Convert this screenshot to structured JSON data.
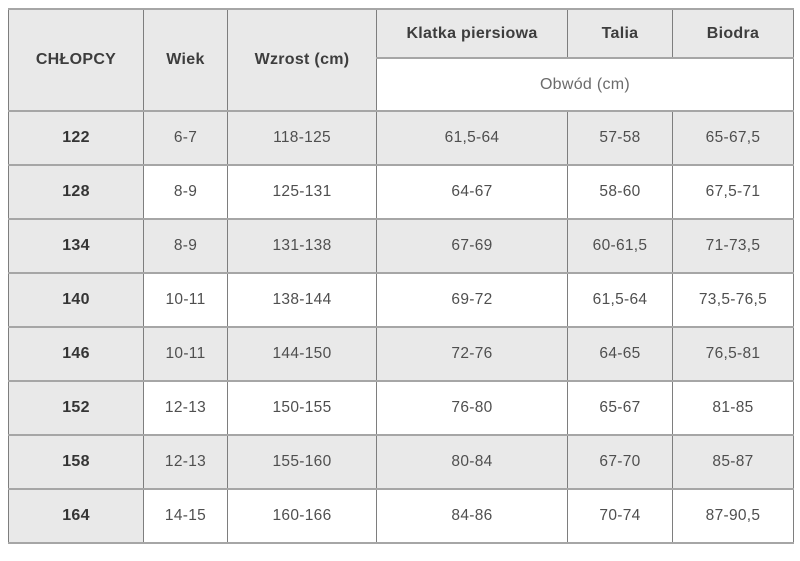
{
  "chart_data": {
    "type": "table",
    "header": {
      "group_label": "CHŁOPCY",
      "age_label": "Wiek",
      "height_label": "Wzrost (cm)",
      "chest_label": "Klatka piersiowa",
      "waist_label": "Talia",
      "hips_label": "Biodra",
      "circumference_label": "Obwód (cm)"
    },
    "rows": [
      [
        "122",
        "6-7",
        "118-125",
        "61,5-64",
        "57-58",
        "65-67,5"
      ],
      [
        "128",
        "8-9",
        "125-131",
        "64-67",
        "58-60",
        "67,5-71"
      ],
      [
        "134",
        "8-9",
        "131-138",
        "67-69",
        "60-61,5",
        "71-73,5"
      ],
      [
        "140",
        "10-11",
        "138-144",
        "69-72",
        "61,5-64",
        "73,5-76,5"
      ],
      [
        "146",
        "10-11",
        "144-150",
        "72-76",
        "64-65",
        "76,5-81"
      ],
      [
        "152",
        "12-13",
        "150-155",
        "76-80",
        "65-67",
        "81-85"
      ],
      [
        "158",
        "12-13",
        "155-160",
        "80-84",
        "67-70",
        "85-87"
      ],
      [
        "164",
        "14-15",
        "160-166",
        "84-86",
        "70-74",
        "87-90,5"
      ]
    ]
  },
  "colors": {
    "header_bg": "#e9e9e9",
    "stripe_bg": "#e9e9e9",
    "border_vertical": "#7e7e7e",
    "border_horizontal": "#a6a6a6",
    "header_text": "#3d3d3d",
    "body_text": "#4f4f4f",
    "subheader_text": "#6b6b6b"
  }
}
